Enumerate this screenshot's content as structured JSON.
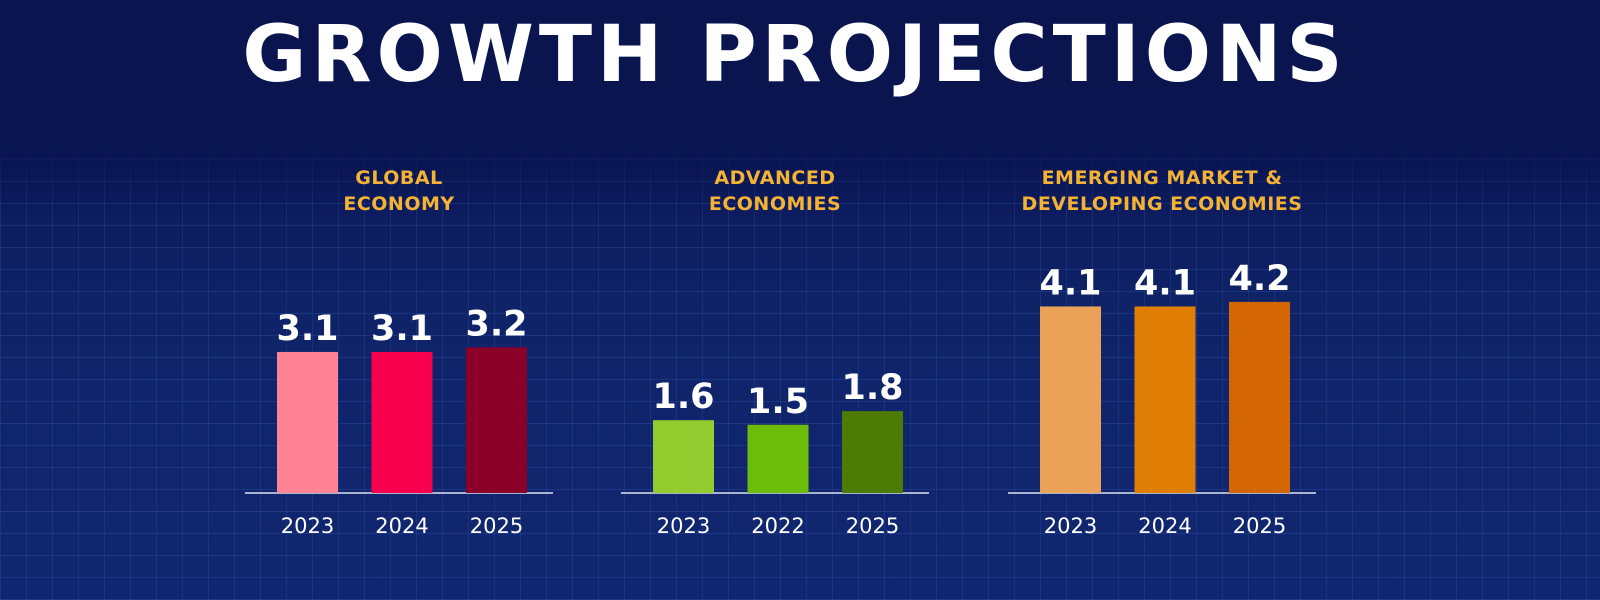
{
  "title": "GROWTH PROJECTIONS",
  "chart_data": [
    {
      "type": "bar",
      "title_lines": [
        "GLOBAL",
        "ECONOMY"
      ],
      "categories": [
        "2023",
        "2024",
        "2025"
      ],
      "values": [
        3.1,
        3.1,
        3.2
      ],
      "colors": [
        "#ff8395",
        "#f7004d",
        "#8a0029"
      ]
    },
    {
      "type": "bar",
      "title_lines": [
        "ADVANCED",
        "ECONOMIES"
      ],
      "categories": [
        "2023",
        "2022",
        "2025"
      ],
      "values": [
        1.6,
        1.5,
        1.8
      ],
      "colors": [
        "#93cc2e",
        "#6bbd0a",
        "#4e7a06"
      ]
    },
    {
      "type": "bar",
      "title_lines": [
        "EMERGING MARKET &",
        "DEVELOPING ECONOMIES"
      ],
      "categories": [
        "2023",
        "2024",
        "2025"
      ],
      "values": [
        4.1,
        4.1,
        4.2
      ],
      "colors": [
        "#e9a257",
        "#e07e06",
        "#d46604"
      ]
    }
  ],
  "colors": {
    "background": "#0a1550",
    "panel_title": "#f5b335",
    "text": "#ffffff"
  }
}
